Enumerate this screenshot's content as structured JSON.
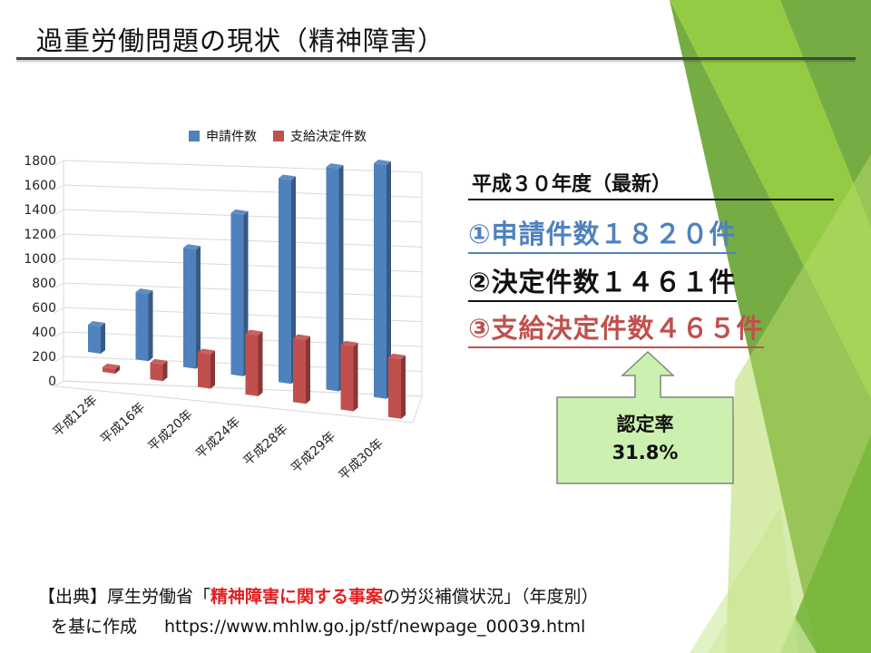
{
  "title": "過重労働問題の現状（精神障害）",
  "chart_data": {
    "type": "bar",
    "categories": [
      "平成12年",
      "平成16年",
      "平成20年",
      "平成24年",
      "平成28年",
      "平成29年",
      "平成30年"
    ],
    "series": [
      {
        "name": "申請件数",
        "values": [
          212,
          524,
          927,
          1257,
          1586,
          1732,
          1820
        ],
        "color": "#4f81bd"
      },
      {
        "name": "支給決定件数",
        "values": [
          36,
          130,
          269,
          475,
          498,
          506,
          465
        ],
        "color": "#c0504d"
      }
    ],
    "ylim": [
      0,
      1800
    ],
    "yticks": [
      "0",
      "200",
      "400",
      "600",
      "800",
      "1000",
      "1200",
      "1400",
      "1600",
      "1800"
    ],
    "grid": true,
    "legend_position": "top",
    "style": "3d-column"
  },
  "latest": {
    "heading": "平成３０年度（最新）",
    "apply": "①申請件数１８２０件",
    "decide": "②決定件数１４６１件",
    "pay": "③支給決定件数４６５件"
  },
  "callout": {
    "label": "認定率",
    "value": "31.8%",
    "fill": "#ccf0b0",
    "border": "#7a8a7a"
  },
  "source": {
    "prefix": "【出典】厚生労働省「",
    "highlight": "精神障害に関する事案",
    "suffix": "の労災補償状況」（年度別）",
    "line2": "を基に作成",
    "url": "https://www.mhlw.go.jp/stf/newpage_00039.html"
  },
  "colors": {
    "accent_green": "#8cc63f",
    "apply_blue": "#4f81bd",
    "pay_red": "#c0504d"
  }
}
